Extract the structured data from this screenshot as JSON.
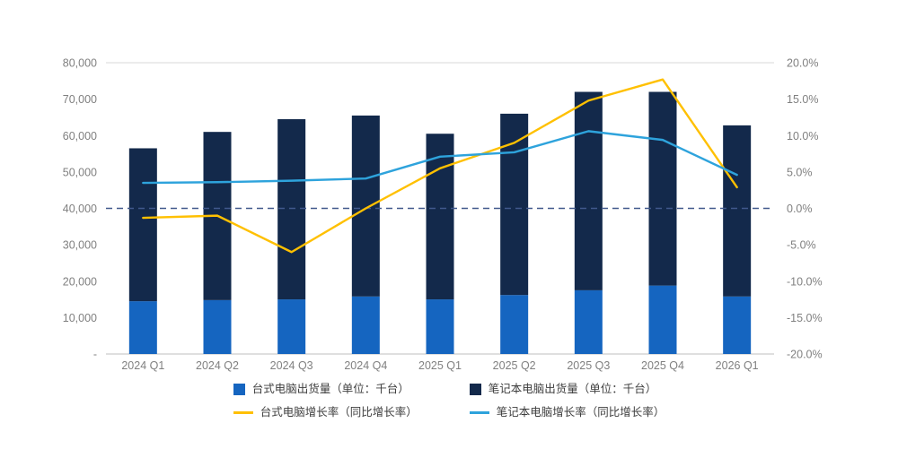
{
  "chart_data": {
    "type": "combo-stacked-bar-line",
    "categories": [
      "2024 Q1",
      "2024 Q2",
      "2024 Q3",
      "2024 Q4",
      "2025 Q1",
      "2025 Q2",
      "2025 Q3",
      "2025 Q4",
      "2026 Q1"
    ],
    "bar_series": [
      {
        "name": "台式电脑出货量（单位：千台）",
        "color": "#1565C0",
        "axis": "left",
        "values": [
          14500,
          14800,
          15000,
          15800,
          15000,
          16200,
          17500,
          18800,
          15800
        ]
      },
      {
        "name": "笔记本电脑出货量（单位：千台）",
        "color": "#13294B",
        "axis": "left",
        "values": [
          42000,
          46200,
          49500,
          49700,
          45500,
          49800,
          54500,
          53200,
          47000
        ]
      }
    ],
    "line_series": [
      {
        "name": "台式电脑增长率（同比增长率）",
        "color": "#FFC000",
        "axis": "right",
        "values": [
          -1.3,
          -1.0,
          -6.0,
          0.0,
          5.5,
          9.0,
          14.8,
          17.7,
          2.9
        ]
      },
      {
        "name": "笔记本电脑增长率（同比增长率）",
        "color": "#2EA3DC",
        "axis": "right",
        "values": [
          3.5,
          3.6,
          3.8,
          4.1,
          7.1,
          7.7,
          10.6,
          9.4,
          4.6
        ]
      }
    ],
    "left_axis": {
      "min": 0,
      "max": 80000,
      "step": 10000,
      "tick_labels": [
        "-",
        "10,000",
        "20,000",
        "30,000",
        "40,000",
        "50,000",
        "60,000",
        "70,000",
        "80,000"
      ]
    },
    "right_axis": {
      "min": -20,
      "max": 20,
      "step": 5,
      "tick_labels": [
        "-20.0%",
        "-15.0%",
        "-10.0%",
        "-5.0%",
        "0.0%",
        "5.0%",
        "10.0%",
        "15.0%",
        "20.0%"
      ]
    },
    "reference_line": {
      "axis": "right",
      "value": 0,
      "color": "#41598C",
      "style": "dashed"
    },
    "legend_position": "bottom",
    "grid": "top-border-only"
  },
  "legend": {
    "items": [
      {
        "label": "台式电脑出货量（单位：千台）",
        "swatch": "square",
        "color": "#1565C0"
      },
      {
        "label": "笔记本电脑出货量（单位：千台）",
        "swatch": "square",
        "color": "#13294B"
      },
      {
        "label": "台式电脑增长率（同比增长率）",
        "swatch": "line",
        "color": "#FFC000"
      },
      {
        "label": "笔记本电脑增长率（同比增长率）",
        "swatch": "line",
        "color": "#2EA3DC"
      }
    ]
  },
  "colors": {
    "axis_text": "#808080",
    "axis_line": "#BFBFBF",
    "top_border": "#D9D9D9"
  }
}
